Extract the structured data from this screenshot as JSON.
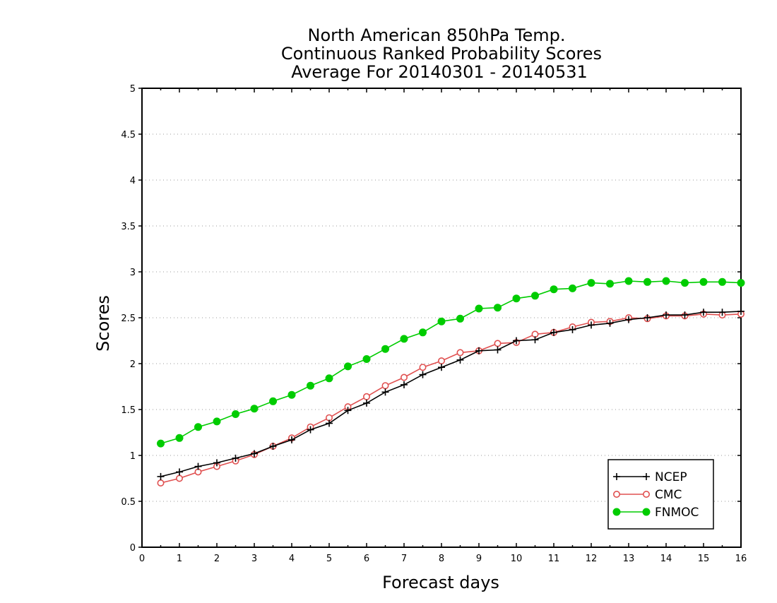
{
  "chart_data": {
    "type": "line",
    "title_lines": [
      "North American 850hPa Temp.",
      "Continuous Ranked Probability Scores",
      "Average For 20140301 - 20140531"
    ],
    "xlabel": "Forecast days",
    "ylabel": "Scores",
    "xlim": [
      0,
      16
    ],
    "ylim": [
      0,
      5
    ],
    "xticks": [
      0,
      1,
      2,
      3,
      4,
      5,
      6,
      7,
      8,
      9,
      10,
      11,
      12,
      13,
      14,
      15,
      16
    ],
    "yticks": [
      0,
      0.5,
      1,
      1.5,
      2,
      2.5,
      3,
      3.5,
      4,
      4.5,
      5
    ],
    "ytick_labels": [
      "0",
      "0.5",
      "1",
      "1.5",
      "2",
      "2.5",
      "3",
      "3.5",
      "4",
      "4.5",
      "5"
    ],
    "grid": "horizontal-dotted",
    "legend_position": "bottom-right",
    "x": [
      0.5,
      1,
      1.5,
      2,
      2.5,
      3,
      3.5,
      4,
      4.5,
      5,
      5.5,
      6,
      6.5,
      7,
      7.5,
      8,
      8.5,
      9,
      9.5,
      10,
      10.5,
      11,
      11.5,
      12,
      12.5,
      13,
      13.5,
      14,
      14.5,
      15,
      15.5,
      16
    ],
    "series": [
      {
        "name": "NCEP",
        "color": "#000000",
        "marker": "plus",
        "values": [
          0.77,
          0.82,
          0.88,
          0.92,
          0.97,
          1.02,
          1.1,
          1.17,
          1.28,
          1.35,
          1.49,
          1.57,
          1.69,
          1.77,
          1.88,
          1.96,
          2.04,
          2.14,
          2.15,
          2.25,
          2.26,
          2.34,
          2.37,
          2.42,
          2.44,
          2.48,
          2.5,
          2.53,
          2.53,
          2.56,
          2.56,
          2.57
        ]
      },
      {
        "name": "CMC",
        "color": "#e05050",
        "marker": "open-circle",
        "values": [
          0.7,
          0.75,
          0.82,
          0.88,
          0.94,
          1.01,
          1.1,
          1.19,
          1.31,
          1.41,
          1.53,
          1.64,
          1.76,
          1.85,
          1.96,
          2.03,
          2.12,
          2.14,
          2.22,
          2.23,
          2.32,
          2.34,
          2.4,
          2.45,
          2.46,
          2.5,
          2.49,
          2.52,
          2.52,
          2.54,
          2.53,
          2.54
        ]
      },
      {
        "name": "FNMOC",
        "color": "#00cc00",
        "marker": "filled-circle",
        "values": [
          1.13,
          1.19,
          1.31,
          1.37,
          1.45,
          1.51,
          1.59,
          1.66,
          1.76,
          1.84,
          1.97,
          2.05,
          2.16,
          2.27,
          2.34,
          2.46,
          2.49,
          2.6,
          2.61,
          2.71,
          2.74,
          2.81,
          2.82,
          2.88,
          2.87,
          2.9,
          2.89,
          2.9,
          2.88,
          2.89,
          2.89,
          2.88
        ]
      }
    ]
  }
}
